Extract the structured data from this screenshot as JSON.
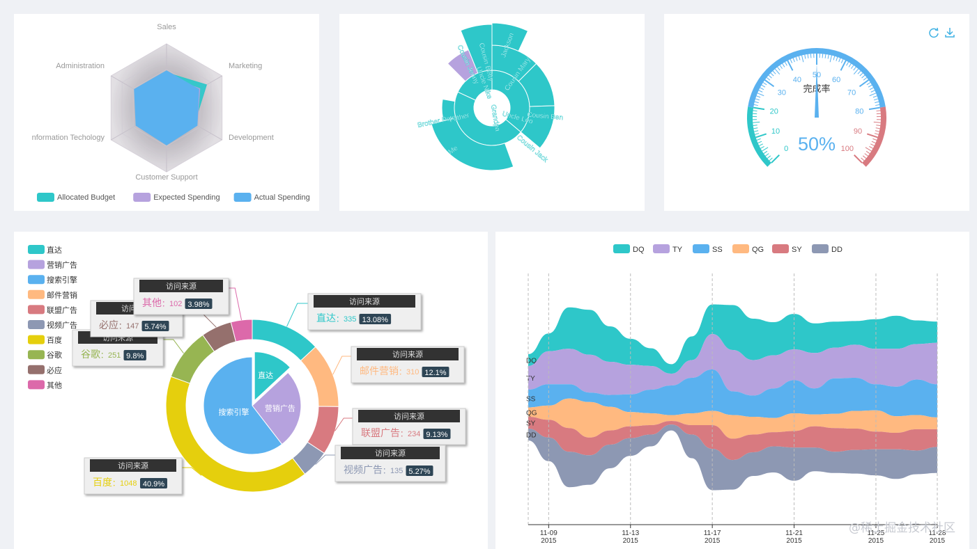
{
  "colors": {
    "teal": "#2ec7c9",
    "purple": "#b6a2de",
    "blue": "#5ab1ef",
    "orange": "#ffb980",
    "red": "#d87a80",
    "slate": "#8d98b3",
    "yellow": "#e5cf0d",
    "green": "#97b552",
    "brown": "#95706d",
    "pink": "#dc69aa"
  },
  "watermark": "@稀土掘金技术社区",
  "radar": {
    "chart_data": {
      "type": "radar",
      "indicators": [
        "Sales",
        "Marketing",
        "Development",
        "Customer Support",
        "Information Techology",
        "Administration"
      ],
      "indicator_labels_visible": [
        "Sales",
        "Marketing",
        "Development",
        "Customer Support",
        "nformation Techology",
        "Administration"
      ],
      "max": 1,
      "series": [
        {
          "name": "Allocated Budget",
          "color": "#2ec7c9",
          "values": [
            0.55,
            0.72,
            0.5,
            0.45,
            0.25,
            0.55
          ]
        },
        {
          "name": "Expected Spending",
          "color": "#b6a2de",
          "values": [
            0.5,
            0.6,
            0.55,
            0.55,
            0.5,
            0.5
          ]
        },
        {
          "name": "Actual Spending",
          "color": "#5ab1ef",
          "values": [
            0.58,
            0.58,
            0.55,
            0.58,
            0.55,
            0.58
          ]
        }
      ],
      "legend_position": "bottom"
    }
  },
  "sunburst": {
    "chart_data": {
      "type": "sunburst",
      "labels": [
        "Grandpa",
        "Father",
        "Me",
        "Brother Peter",
        "Uncle Leo",
        "Cousin Jack",
        "Cousin Mary",
        "Jackson",
        "Cousin Ben",
        "Nancy",
        "Uncle Nike",
        "Cousin Betty",
        "Cousin Jenny"
      ],
      "rings": [
        [
          {
            "name": "Grandpa",
            "value": 14,
            "color": "#2ec7c9"
          }
        ],
        [
          {
            "name": "Uncle Leo",
            "value": 6,
            "color": "#2ec7c9",
            "parent": "Grandpa"
          },
          {
            "name": "Father",
            "value": 4,
            "color": "#2ec7c9",
            "parent": "Grandpa"
          },
          {
            "name": "Uncle Nike",
            "value": 4,
            "color": "#2ec7c9",
            "parent": "Nancy"
          }
        ],
        [
          {
            "name": "Cousin Jack",
            "value": 2,
            "color": "#2ec7c9"
          },
          {
            "name": "Cousin Mary",
            "value": 2,
            "color": "#2ec7c9"
          },
          {
            "name": "Cousin Ben",
            "value": 2,
            "color": "#2ec7c9"
          },
          {
            "name": "Me",
            "value": 3,
            "color": "#2ec7c9"
          },
          {
            "name": "Brother Peter",
            "value": 1,
            "color": "#2ec7c9"
          },
          {
            "name": "Cousin Betty",
            "value": 1,
            "color": "#b6a2de"
          },
          {
            "name": "Cousin Jenny",
            "value": 2,
            "color": "#b6a2de"
          }
        ],
        [
          {
            "name": "Jackson",
            "value": 1,
            "color": "#2ec7c9"
          }
        ]
      ]
    }
  },
  "gauge": {
    "chart_data": {
      "type": "gauge",
      "title": "完成率",
      "value": 50,
      "display": "50%",
      "min": 0,
      "max": 100,
      "ticks": [
        "0",
        "10",
        "20",
        "30",
        "40",
        "50",
        "60",
        "70",
        "80",
        "90",
        "100"
      ],
      "bands": [
        {
          "to": 0.2,
          "color": "#2ec7c9"
        },
        {
          "to": 0.8,
          "color": "#5ab1ef"
        },
        {
          "to": 1,
          "color": "#d87a80"
        }
      ]
    },
    "toolbox": [
      "refresh-icon",
      "download-icon"
    ]
  },
  "pie": {
    "chart_data": {
      "type": "pie",
      "legend": [
        "直达",
        "营销广告",
        "搜索引擎",
        "邮件营销",
        "联盟广告",
        "视频广告",
        "百度",
        "谷歌",
        "必应",
        "其他"
      ],
      "legend_colors": [
        "#2ec7c9",
        "#b6a2de",
        "#5ab1ef",
        "#ffb980",
        "#d87a80",
        "#8d98b3",
        "#e5cf0d",
        "#97b552",
        "#95706d",
        "#dc69aa"
      ],
      "inner": [
        {
          "name": "直达",
          "value": 335,
          "color": "#2ec7c9"
        },
        {
          "name": "营销广告",
          "value": 679,
          "color": "#b6a2de"
        },
        {
          "name": "搜索引擎",
          "value": 1548,
          "color": "#5ab1ef"
        }
      ],
      "outer": [
        {
          "name": "直达",
          "value": 335,
          "percent": "13.08%",
          "color": "#2ec7c9"
        },
        {
          "name": "邮件营销",
          "value": 310,
          "percent": "12.1%",
          "color": "#ffb980"
        },
        {
          "name": "联盟广告",
          "value": 234,
          "percent": "9.13%",
          "color": "#d87a80"
        },
        {
          "name": "视频广告",
          "value": 135,
          "percent": "5.27%",
          "color": "#8d98b3"
        },
        {
          "name": "百度",
          "value": 1048,
          "percent": "40.9%",
          "color": "#e5cf0d"
        },
        {
          "name": "谷歌",
          "value": 251,
          "percent": "9.8%",
          "color": "#97b552"
        },
        {
          "name": "必应",
          "value": 147,
          "percent": "5.74%",
          "color": "#95706d"
        },
        {
          "name": "其他",
          "value": 102,
          "percent": "3.98%",
          "color": "#dc69aa"
        }
      ],
      "callout_title": "访问来源"
    }
  },
  "river": {
    "chart_data": {
      "type": "themeRiver",
      "series": [
        {
          "name": "DQ",
          "color": "#2ec7c9",
          "values": [
            10,
            15,
            35,
            38,
            30,
            22,
            15,
            8,
            20,
            25,
            38,
            35,
            28,
            30,
            25,
            22,
            20,
            25,
            28,
            20,
            18,
            22,
            20,
            18,
            25,
            20
          ]
        },
        {
          "name": "TY",
          "color": "#b6a2de",
          "values": [
            20,
            28,
            30,
            32,
            28,
            25,
            20,
            10,
            15,
            30,
            35,
            30,
            28,
            26,
            30,
            26,
            28,
            30,
            32,
            30,
            35,
            30,
            28,
            32,
            30,
            30
          ]
        },
        {
          "name": "SS",
          "color": "#5ab1ef",
          "values": [
            15,
            18,
            12,
            8,
            10,
            15,
            20,
            25,
            30,
            35,
            20,
            18,
            25,
            28,
            22,
            30,
            28,
            22,
            25,
            30,
            28,
            25,
            30,
            28,
            25,
            20
          ]
        },
        {
          "name": "QG",
          "color": "#ffb980",
          "values": [
            8,
            12,
            25,
            30,
            20,
            12,
            10,
            5,
            10,
            12,
            20,
            15,
            12,
            15,
            10,
            12,
            15,
            18,
            14,
            12,
            10,
            12,
            15,
            12,
            10,
            10
          ]
        },
        {
          "name": "SY",
          "color": "#d87a80",
          "values": [
            10,
            15,
            20,
            15,
            12,
            10,
            8,
            3,
            8,
            20,
            18,
            15,
            12,
            14,
            18,
            20,
            18,
            15,
            14,
            18,
            15,
            12,
            14,
            18,
            15,
            12
          ]
        },
        {
          "name": "DD",
          "color": "#8d98b3",
          "values": [
            10,
            20,
            30,
            25,
            20,
            15,
            10,
            5,
            20,
            35,
            25,
            20,
            22,
            28,
            20,
            18,
            20,
            22,
            25,
            20,
            22,
            20,
            25,
            28,
            20,
            18
          ]
        }
      ],
      "x": [
        "2015/11/08",
        "2015/11/09",
        "2015/11/10",
        "2015/11/11",
        "2015/11/12",
        "2015/11/13",
        "2015/11/14",
        "2015/11/15",
        "2015/11/16",
        "2015/11/17",
        "2015/11/18",
        "2015/11/19",
        "2015/11/20",
        "2015/11/21",
        "2015/11/22",
        "2015/11/23",
        "2015/11/24",
        "2015/11/25",
        "2015/11/26",
        "2015/11/27",
        "2015/11/28",
        "2015/11/29",
        "2015/11/30",
        "2015/12/01",
        "2015/12/02",
        "2015/12/03"
      ],
      "x_ticks": [
        {
          "date": "2015/11/09",
          "label": "11-09",
          "year": "2015"
        },
        {
          "date": "2015/11/13",
          "label": "11-13",
          "year": "2015"
        },
        {
          "date": "2015/11/17",
          "label": "11-17",
          "year": "2015"
        },
        {
          "date": "2015/11/21",
          "label": "11-21",
          "year": "2015"
        },
        {
          "date": "2015/11/25",
          "label": "11-25",
          "year": "2015"
        },
        {
          "date": "2015/11/28",
          "label": "11-28",
          "year": "2015"
        }
      ],
      "legend_position": "top"
    }
  }
}
